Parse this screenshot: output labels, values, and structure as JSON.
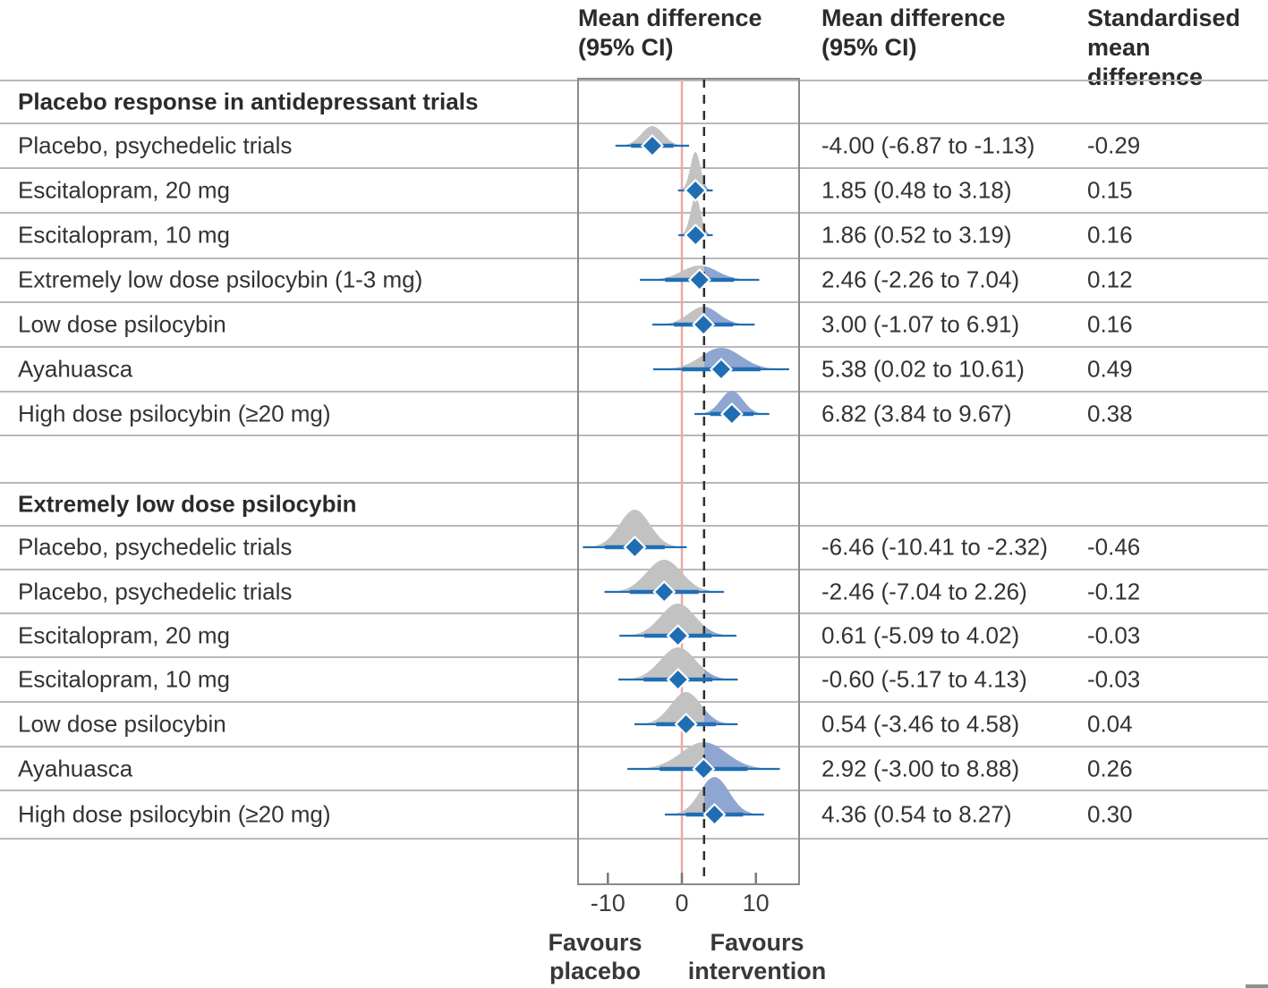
{
  "chart_data": {
    "type": "forest",
    "columns": [
      "Mean difference\n(95% CI)",
      "Mean difference\n(95% CI)",
      "Standardised\nmean\ndifference"
    ],
    "axis": {
      "ticks": [
        -10,
        0,
        10
      ],
      "reference_line": 0,
      "threshold_line": 3,
      "xlim": [
        -14,
        15.8
      ]
    },
    "favours_left": "Favours placebo",
    "favours_right": "Favours intervention",
    "colors": {
      "diamond_blue": "#1f6eb4",
      "density_gray": "#c2c2c2",
      "density_blue": "#8fa5d2",
      "reference_red": "#eca9a4",
      "dashed_black": "#2f2f2f",
      "grid_gray": "#b9b9b9",
      "box_gray": "#8a8a8a"
    },
    "sections": [
      {
        "header": "Placebo response in antidepressant trials",
        "rows": [
          {
            "label": "Placebo, psychedelic trials",
            "estimate_text": "-4.00 (-6.87 to -1.13)",
            "smd_text": "-0.29",
            "mean": -4.0,
            "lo": -6.87,
            "hi": -1.13,
            "peak": 22
          },
          {
            "label": "Escitalopram, 20 mg",
            "estimate_text": "1.85 (0.48 to 3.18)",
            "smd_text": "0.15",
            "mean": 1.85,
            "lo": 0.48,
            "hi": 3.18,
            "peak": 43
          },
          {
            "label": "Escitalopram, 10 mg",
            "estimate_text": "1.86 (0.52 to 3.19)",
            "smd_text": "0.16",
            "mean": 1.86,
            "lo": 0.52,
            "hi": 3.19,
            "peak": 43
          },
          {
            "label": "Extremely low dose psilocybin (1-3 mg)",
            "estimate_text": "2.46 (-2.26 to 7.04)",
            "smd_text": "0.12",
            "mean": 2.46,
            "lo": -2.26,
            "hi": 7.04,
            "peak": 16
          },
          {
            "label": "Low dose psilocybin",
            "estimate_text": "3.00 (-1.07 to 6.91)",
            "smd_text": "0.16",
            "mean": 3.0,
            "lo": -1.07,
            "hi": 6.91,
            "peak": 20
          },
          {
            "label": "Ayahuasca",
            "estimate_text": "5.38 (0.02 to 10.61)",
            "smd_text": "0.49",
            "mean": 5.38,
            "lo": 0.02,
            "hi": 10.61,
            "peak": 24
          },
          {
            "label": "High dose psilocybin (≥20 mg)",
            "estimate_text": "6.82 (3.84 to 9.67)",
            "smd_text": "0.38",
            "mean": 6.82,
            "lo": 3.84,
            "hi": 9.67,
            "peak": 26
          }
        ]
      },
      {
        "header": "Extremely low dose psilocybin",
        "rows": [
          {
            "label": "Placebo, psychedelic trials",
            "estimate_text": "-6.46 (-10.41 to -2.32)",
            "smd_text": "-0.46",
            "mean": -6.46,
            "lo": -10.41,
            "hi": -2.32,
            "peak": 42
          },
          {
            "label": "Placebo, psychedelic trials",
            "estimate_text": "-2.46 (-7.04 to 2.26)",
            "smd_text": "-0.12",
            "mean": -2.46,
            "lo": -7.04,
            "hi": 2.26,
            "peak": 36
          },
          {
            "label": "Escitalopram, 20 mg",
            "estimate_text": "0.61 (-5.09 to 4.02)",
            "smd_text": "-0.03",
            "mean": 0.61,
            "lo": -5.09,
            "hi": 4.02,
            "peak": 36
          },
          {
            "label": "Escitalopram, 10 mg",
            "estimate_text": "-0.60 (-5.17 to 4.13)",
            "smd_text": "-0.03",
            "mean": -0.6,
            "lo": -5.17,
            "hi": 4.13,
            "peak": 36
          },
          {
            "label": "Low dose psilocybin",
            "estimate_text": "0.54 (-3.46 to 4.58)",
            "smd_text": "0.04",
            "mean": 0.54,
            "lo": -3.46,
            "hi": 4.58,
            "peak": 36
          },
          {
            "label": "Ayahuasca",
            "estimate_text": "2.92 (-3.00 to 8.88)",
            "smd_text": "0.26",
            "mean": 2.92,
            "lo": -3.0,
            "hi": 8.88,
            "peak": 30
          },
          {
            "label": "High dose psilocybin (≥20 mg)",
            "estimate_text": "4.36 (0.54 to 8.27)",
            "smd_text": "0.30",
            "mean": 4.36,
            "lo": 0.54,
            "hi": 8.27,
            "peak": 42
          }
        ]
      }
    ]
  }
}
